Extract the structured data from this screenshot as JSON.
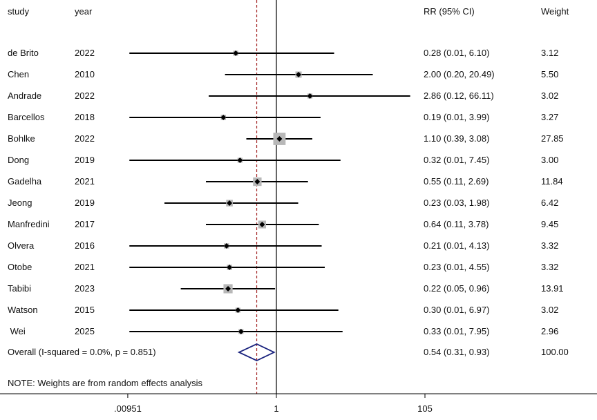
{
  "headers": {
    "study": "study",
    "year": "year",
    "rr": "RR (95% CI)",
    "weight": "Weight"
  },
  "chart_data": {
    "type": "forest",
    "scale": "log",
    "null_value": 1,
    "overall_line_value": 0.54,
    "xticks": [
      {
        "value": 0.00951,
        "label": ".00951"
      },
      {
        "value": 1,
        "label": "1"
      },
      {
        "value": 105,
        "label": "105"
      }
    ],
    "studies": [
      {
        "study": "de Brito",
        "year": "2022",
        "rr": 0.28,
        "lo": 0.01,
        "hi": 6.1,
        "ci_text": "0.28 (0.01, 6.10)",
        "weight": 3.12,
        "weight_text": "3.12"
      },
      {
        "study": "Chen",
        "year": "2010",
        "rr": 2.0,
        "lo": 0.2,
        "hi": 20.49,
        "ci_text": "2.00 (0.20, 20.49)",
        "weight": 5.5,
        "weight_text": "5.50"
      },
      {
        "study": "Andrade",
        "year": "2022",
        "rr": 2.86,
        "lo": 0.12,
        "hi": 66.11,
        "ci_text": "2.86 (0.12, 66.11)",
        "weight": 3.02,
        "weight_text": "3.02"
      },
      {
        "study": "Barcellos",
        "year": "2018",
        "rr": 0.19,
        "lo": 0.01,
        "hi": 3.99,
        "ci_text": "0.19 (0.01, 3.99)",
        "weight": 3.27,
        "weight_text": "3.27"
      },
      {
        "study": "Bohlke",
        "year": "2022",
        "rr": 1.1,
        "lo": 0.39,
        "hi": 3.08,
        "ci_text": "1.10 (0.39, 3.08)",
        "weight": 27.85,
        "weight_text": "27.85"
      },
      {
        "study": "Dong",
        "year": "2019",
        "rr": 0.32,
        "lo": 0.01,
        "hi": 7.45,
        "ci_text": "0.32 (0.01, 7.45)",
        "weight": 3.0,
        "weight_text": "3.00"
      },
      {
        "study": "Gadelha",
        "year": "2021",
        "rr": 0.55,
        "lo": 0.11,
        "hi": 2.69,
        "ci_text": "0.55 (0.11, 2.69)",
        "weight": 11.84,
        "weight_text": "11.84"
      },
      {
        "study": "Jeong",
        "year": "2019",
        "rr": 0.23,
        "lo": 0.03,
        "hi": 1.98,
        "ci_text": "0.23 (0.03, 1.98)",
        "weight": 6.42,
        "weight_text": "6.42"
      },
      {
        "study": "Manfredini",
        "year": "2017",
        "rr": 0.64,
        "lo": 0.11,
        "hi": 3.78,
        "ci_text": "0.64 (0.11, 3.78)",
        "weight": 9.45,
        "weight_text": "9.45"
      },
      {
        "study": "Olvera",
        "year": "2016",
        "rr": 0.21,
        "lo": 0.01,
        "hi": 4.13,
        "ci_text": "0.21 (0.01, 4.13)",
        "weight": 3.32,
        "weight_text": "3.32"
      },
      {
        "study": "Otobe",
        "year": "2021",
        "rr": 0.23,
        "lo": 0.01,
        "hi": 4.55,
        "ci_text": "0.23 (0.01, 4.55)",
        "weight": 3.32,
        "weight_text": "3.32"
      },
      {
        "study": "Tabibi",
        "year": "2023",
        "rr": 0.22,
        "lo": 0.05,
        "hi": 0.96,
        "ci_text": "0.22 (0.05, 0.96)",
        "weight": 13.91,
        "weight_text": "13.91"
      },
      {
        "study": "Watson",
        "year": "2015",
        "rr": 0.3,
        "lo": 0.01,
        "hi": 6.97,
        "ci_text": "0.30 (0.01, 6.97)",
        "weight": 3.02,
        "weight_text": "3.02"
      },
      {
        "study": " Wei",
        "year": "2025",
        "rr": 0.33,
        "lo": 0.01,
        "hi": 7.95,
        "ci_text": "0.33 (0.01, 7.95)",
        "weight": 2.96,
        "weight_text": "2.96"
      }
    ],
    "overall": {
      "label": "Overall  (I-squared = 0.0%, p = 0.851)",
      "rr": 0.54,
      "lo": 0.31,
      "hi": 0.93,
      "ci_text": "0.54 (0.31, 0.93)",
      "weight_text": "100.00"
    },
    "note": "NOTE: Weights are from random effects analysis"
  },
  "colors": {
    "ci_line": "#000000",
    "box": "#b8b8b8",
    "diamond": "#1a237e",
    "null_line": "#000000",
    "overall_line": "#a52a2a",
    "axis": "#000000"
  }
}
